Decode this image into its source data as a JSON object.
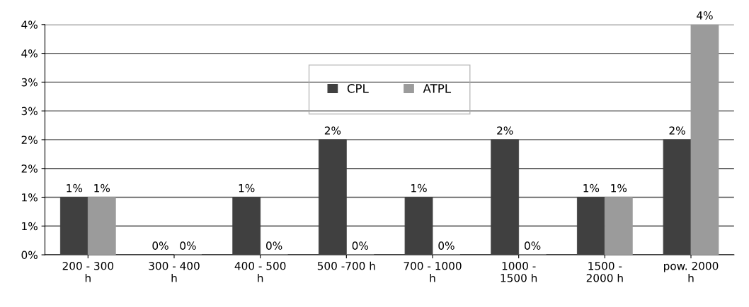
{
  "chart_data": {
    "type": "bar",
    "categories": [
      "200 - 300\nh",
      "300 - 400\nh",
      "400 - 500\nh",
      "500 -700 h",
      "700 - 1000\nh",
      "1000 -\n1500 h",
      "1500 -\n2000 h",
      "pow. 2000\nh"
    ],
    "series": [
      {
        "name": "CPL",
        "color": "#404040",
        "values": [
          1,
          0,
          1,
          2,
          1,
          2,
          1,
          2
        ],
        "value_labels": [
          "1%",
          "0%",
          "1%",
          "2%",
          "1%",
          "2%",
          "1%",
          "2%"
        ]
      },
      {
        "name": "ATPL",
        "color": "#9b9b9b",
        "values": [
          1,
          0,
          0,
          0,
          0,
          0,
          1,
          4
        ],
        "value_labels": [
          "1%",
          "0%",
          "0%",
          "0%",
          "0%",
          "0%",
          "1%",
          "4%"
        ]
      }
    ],
    "ylim": [
      0,
      4
    ],
    "yticks": [
      {
        "value": 0,
        "label": "0%"
      },
      {
        "value": 0.5,
        "label": "1%"
      },
      {
        "value": 1,
        "label": "1%"
      },
      {
        "value": 1.5,
        "label": "2%"
      },
      {
        "value": 2,
        "label": "2%"
      },
      {
        "value": 2.5,
        "label": "3%"
      },
      {
        "value": 3,
        "label": "3%"
      },
      {
        "value": 3.5,
        "label": "4%"
      },
      {
        "value": 4,
        "label": "4%"
      }
    ],
    "grid": "y",
    "legend": "top"
  }
}
